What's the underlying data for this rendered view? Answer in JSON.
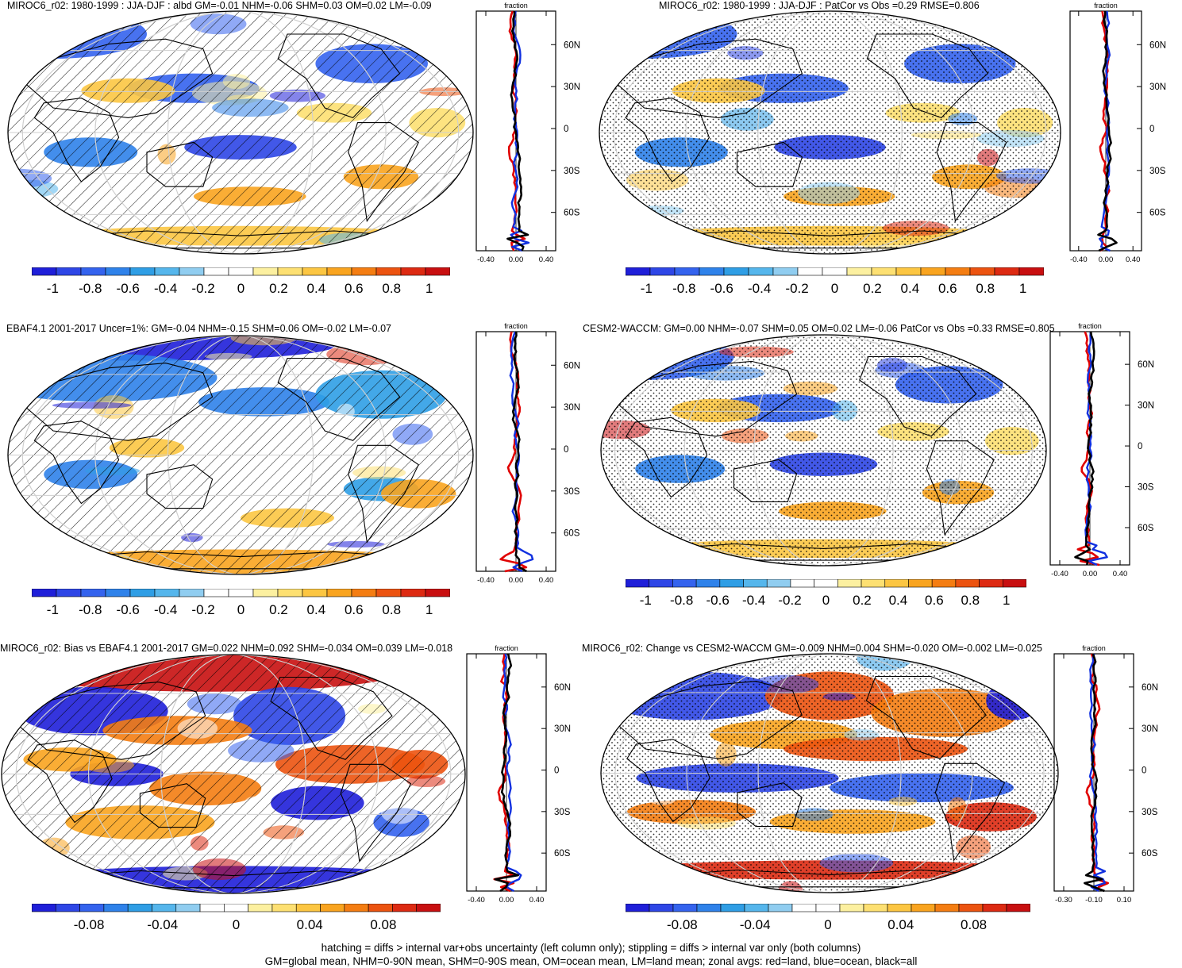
{
  "panels": [
    {
      "id": "p1",
      "title": "MIROC6_r02: 1980-1999 : JJA-DJF : albd GM=-0.01 NHM=-0.06 SHM=0.03 OM=0.02 LM=-0.09",
      "pattern": "hatch",
      "scheme": "mean"
    },
    {
      "id": "p2",
      "title": "MIROC6_r02: 1980-1999 : JJA-DJF : PatCor vs Obs =0.29 RMSE=0.806",
      "pattern": "stipple",
      "scheme": "mean"
    },
    {
      "id": "p3",
      "title": "EBAF4.1 2001-2017 Uncer=1%: GM=-0.04 NHM=-0.15 SHM=0.06 OM=-0.02 LM=-0.07",
      "pattern": "hatch",
      "scheme": "obs"
    },
    {
      "id": "p4",
      "title": "CESM2-WACCM: GM=0.00 NHM=-0.07 SHM=0.05 OM=0.02 LM=-0.06 PatCor vs Obs =0.33 RMSE=0.805",
      "pattern": "stipple",
      "scheme": "mean"
    },
    {
      "id": "p5",
      "title": "MIROC6_r02: Bias vs EBAF4.1 2001-2017 GM=0.022 NHM=0.092 SHM=-0.034 OM=0.039 LM=-0.018",
      "pattern": "hatch",
      "scheme": "bias"
    },
    {
      "id": "p6",
      "title": "MIROC6_r02: Change vs CESM2-WACCM GM=-0.009 NHM=0.004 SHM=-0.020 OM=-0.002 LM=-0.025",
      "pattern": "stipple",
      "scheme": "change"
    }
  ],
  "profile": {
    "label": "fraction",
    "lat_labels": [
      "60N",
      "30N",
      "0",
      "30S",
      "60S"
    ],
    "x_labels_wide": [
      "-0.40",
      "0.00",
      "0.40"
    ],
    "x_labels_narrow": [
      "-0.30",
      "-0.10",
      "0.10"
    ]
  },
  "colorbars": {
    "wide": [
      "-1",
      "-0.8",
      "-0.6",
      "-0.4",
      "-0.2",
      "0",
      "0.2",
      "0.4",
      "0.6",
      "0.8",
      "1"
    ],
    "small": [
      "-0.08",
      "-0.04",
      "0",
      "0.04",
      "0.08"
    ],
    "colors": [
      "#1f1fd9",
      "#2e46e6",
      "#3463ee",
      "#2f82ea",
      "#2f9ee5",
      "#55b6ec",
      "#90cdf0",
      "#ffffff",
      "#ffffff",
      "#fcf0a0",
      "#fde072",
      "#fcc642",
      "#f9a41f",
      "#f47d12",
      "#ec5310",
      "#dd2a12",
      "#c80f10"
    ]
  },
  "caption": {
    "line1": "hatching = diffs > internal var+obs uncertainty (left column only); stippling = diffs > internal var only (both columns)",
    "line2": "GM=global mean, NHM=0-90N mean, SHM=0-90S mean, OM=ocean mean, LM=land mean; zonal avgs: red=land, blue=ocean, black=all"
  }
}
